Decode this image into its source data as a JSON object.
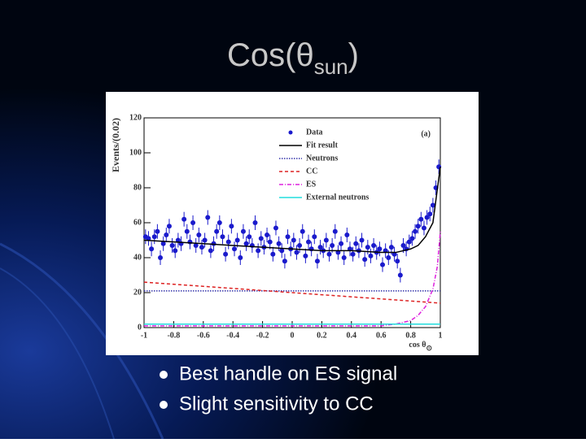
{
  "slide": {
    "title": {
      "main": "Cos(θ",
      "sub": "sun",
      "close": ")"
    },
    "bullets": [
      "Best handle on ES signal",
      "Slight sensitivity to CC"
    ]
  },
  "chart_data": {
    "type": "scatter",
    "ylabel": "Events/(0.02)",
    "xlabel": {
      "main": "cos θ",
      "sub": "⊙"
    },
    "annotation": "(a)",
    "xlim": [
      -1,
      1
    ],
    "ylim": [
      0,
      120
    ],
    "xticks": [
      -1,
      -0.8,
      -0.6,
      -0.4,
      -0.2,
      0,
      0.2,
      0.4,
      0.6,
      0.8,
      1
    ],
    "yticks": [
      0,
      20,
      40,
      60,
      80,
      100,
      120
    ],
    "series": [
      {
        "name": "Data",
        "color": "#1a1acc",
        "style": "points",
        "x": [
          -0.99,
          -0.97,
          -0.95,
          -0.93,
          -0.91,
          -0.89,
          -0.87,
          -0.85,
          -0.83,
          -0.81,
          -0.79,
          -0.77,
          -0.75,
          -0.73,
          -0.71,
          -0.69,
          -0.67,
          -0.65,
          -0.63,
          -0.61,
          -0.59,
          -0.57,
          -0.55,
          -0.53,
          -0.51,
          -0.49,
          -0.47,
          -0.45,
          -0.43,
          -0.41,
          -0.39,
          -0.37,
          -0.35,
          -0.33,
          -0.31,
          -0.29,
          -0.27,
          -0.25,
          -0.23,
          -0.21,
          -0.19,
          -0.17,
          -0.15,
          -0.13,
          -0.11,
          -0.09,
          -0.07,
          -0.05,
          -0.03,
          -0.01,
          0.01,
          0.03,
          0.05,
          0.07,
          0.09,
          0.11,
          0.13,
          0.15,
          0.17,
          0.19,
          0.21,
          0.23,
          0.25,
          0.27,
          0.29,
          0.31,
          0.33,
          0.35,
          0.37,
          0.39,
          0.41,
          0.43,
          0.45,
          0.47,
          0.49,
          0.51,
          0.53,
          0.55,
          0.57,
          0.59,
          0.61,
          0.63,
          0.65,
          0.67,
          0.69,
          0.71,
          0.73,
          0.75,
          0.77,
          0.79,
          0.81,
          0.83,
          0.85,
          0.87,
          0.89,
          0.91,
          0.93,
          0.95,
          0.97,
          0.99
        ],
        "values": [
          52,
          51,
          45,
          52,
          55,
          40,
          48,
          53,
          58,
          47,
          44,
          50,
          48,
          62,
          55,
          49,
          60,
          47,
          53,
          46,
          50,
          63,
          44,
          48,
          55,
          60,
          52,
          42,
          49,
          58,
          45,
          50,
          40,
          55,
          48,
          52,
          47,
          60,
          44,
          51,
          46,
          53,
          49,
          42,
          57,
          48,
          44,
          38,
          52,
          45,
          50,
          43,
          47,
          55,
          41,
          49,
          45,
          52,
          38,
          46,
          44,
          50,
          42,
          47,
          55,
          43,
          48,
          40,
          53,
          45,
          42,
          48,
          44,
          50,
          39,
          46,
          41,
          47,
          43,
          45,
          36,
          44,
          40,
          46,
          42,
          38,
          30,
          47,
          45,
          49,
          51,
          55,
          58,
          62,
          57,
          63,
          65,
          70,
          80,
          92
        ]
      },
      {
        "name": "Fit result",
        "color": "#000000",
        "style": "solid",
        "x": [
          -1,
          -0.8,
          -0.6,
          -0.4,
          -0.2,
          0,
          0.2,
          0.4,
          0.6,
          0.7,
          0.8,
          0.85,
          0.9,
          0.95,
          1
        ],
        "values": [
          50,
          49,
          48,
          47,
          46,
          45,
          44,
          44,
          43,
          43,
          45,
          47,
          52,
          60,
          92
        ]
      },
      {
        "name": "Neutrons",
        "color": "#3333aa",
        "style": "dotted",
        "x": [
          -1,
          -0.5,
          0,
          0.5,
          1
        ],
        "values": [
          21,
          21,
          21,
          21,
          21
        ]
      },
      {
        "name": "CC",
        "color": "#dd2222",
        "style": "dashed",
        "x": [
          -1,
          0,
          1
        ],
        "values": [
          26,
          20,
          14
        ]
      },
      {
        "name": "ES",
        "color": "#dd22dd",
        "style": "dashdot",
        "x": [
          -1,
          0.6,
          0.7,
          0.8,
          0.85,
          0.9,
          0.95,
          0.98,
          1
        ],
        "values": [
          1,
          1,
          2,
          4,
          7,
          12,
          22,
          35,
          55
        ]
      },
      {
        "name": "External neutrons",
        "color": "#22dddd",
        "style": "solid",
        "x": [
          -1,
          1
        ],
        "values": [
          2,
          2
        ]
      }
    ]
  }
}
